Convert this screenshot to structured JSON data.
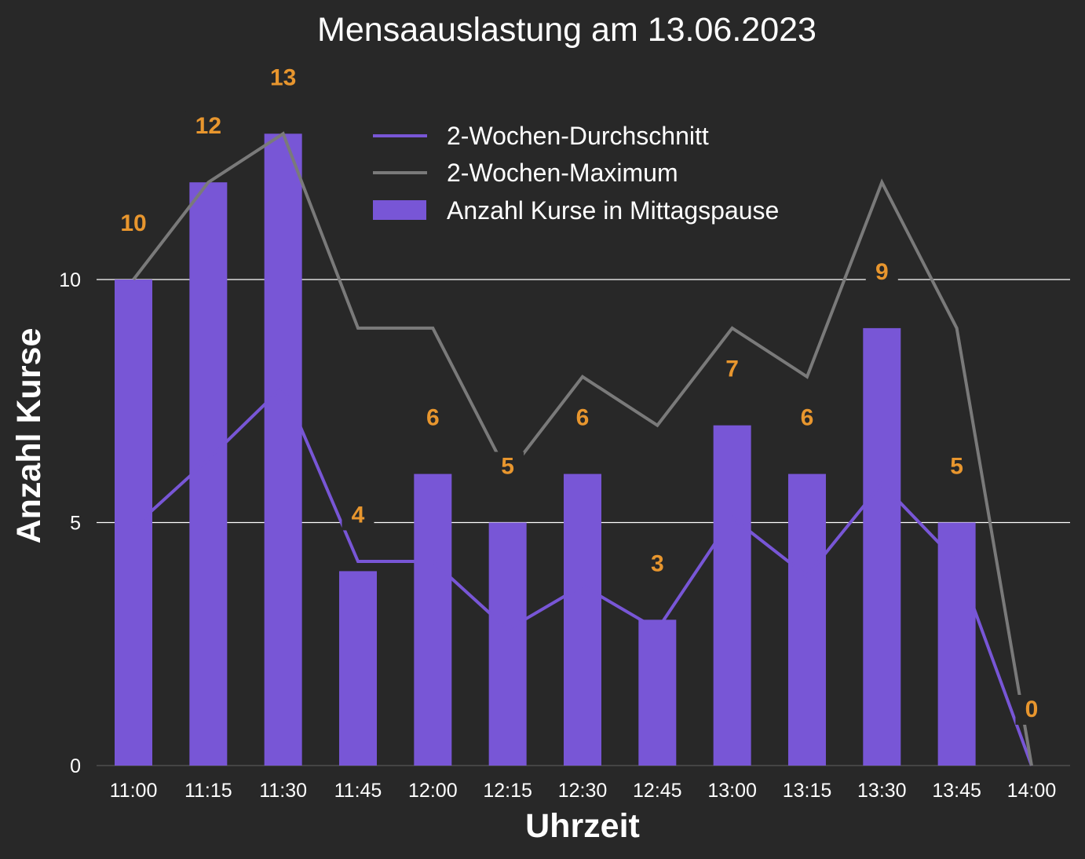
{
  "colors": {
    "background": "#282828",
    "bars": "#7856D6",
    "average_line": "#7856D6",
    "maximum_line": "#7A7A7A",
    "grid": "#FFFFFF",
    "data_labels": "#E8962E",
    "text": "#FFFFFF"
  },
  "chart_data": {
    "type": "bar",
    "title": "Mensaauslastung am 13.06.2023",
    "xlabel": "Uhrzeit",
    "ylabel": "Anzahl Kurse",
    "categories": [
      "11:00",
      "11:15",
      "11:30",
      "11:45",
      "12:00",
      "12:15",
      "12:30",
      "12:45",
      "13:00",
      "13:15",
      "13:30",
      "13:45",
      "14:00"
    ],
    "ylim": [
      0,
      13
    ],
    "yticks": [
      0,
      5,
      10
    ],
    "grid": true,
    "legend_position": "top-center",
    "series": [
      {
        "name": "Anzahl Kurse in Mittagspause",
        "type": "bar",
        "values": [
          10,
          12,
          13,
          4,
          6,
          5,
          6,
          3,
          7,
          6,
          9,
          5,
          0
        ],
        "data_labels": [
          "10",
          "12",
          "13",
          "4",
          "6",
          "5",
          "6",
          "3",
          "7",
          "6",
          "9",
          "5",
          "0"
        ]
      },
      {
        "name": "2-Wochen-Durchschnitt",
        "type": "line",
        "values": [
          4.9,
          6.3,
          7.8,
          4.2,
          4.2,
          2.8,
          3.7,
          2.8,
          5.1,
          3.9,
          5.8,
          4.2,
          0
        ]
      },
      {
        "name": "2-Wochen-Maximum",
        "type": "line",
        "values": [
          10,
          12,
          13,
          9,
          9,
          6,
          8,
          7,
          9,
          8,
          12,
          9,
          0
        ]
      }
    ]
  }
}
